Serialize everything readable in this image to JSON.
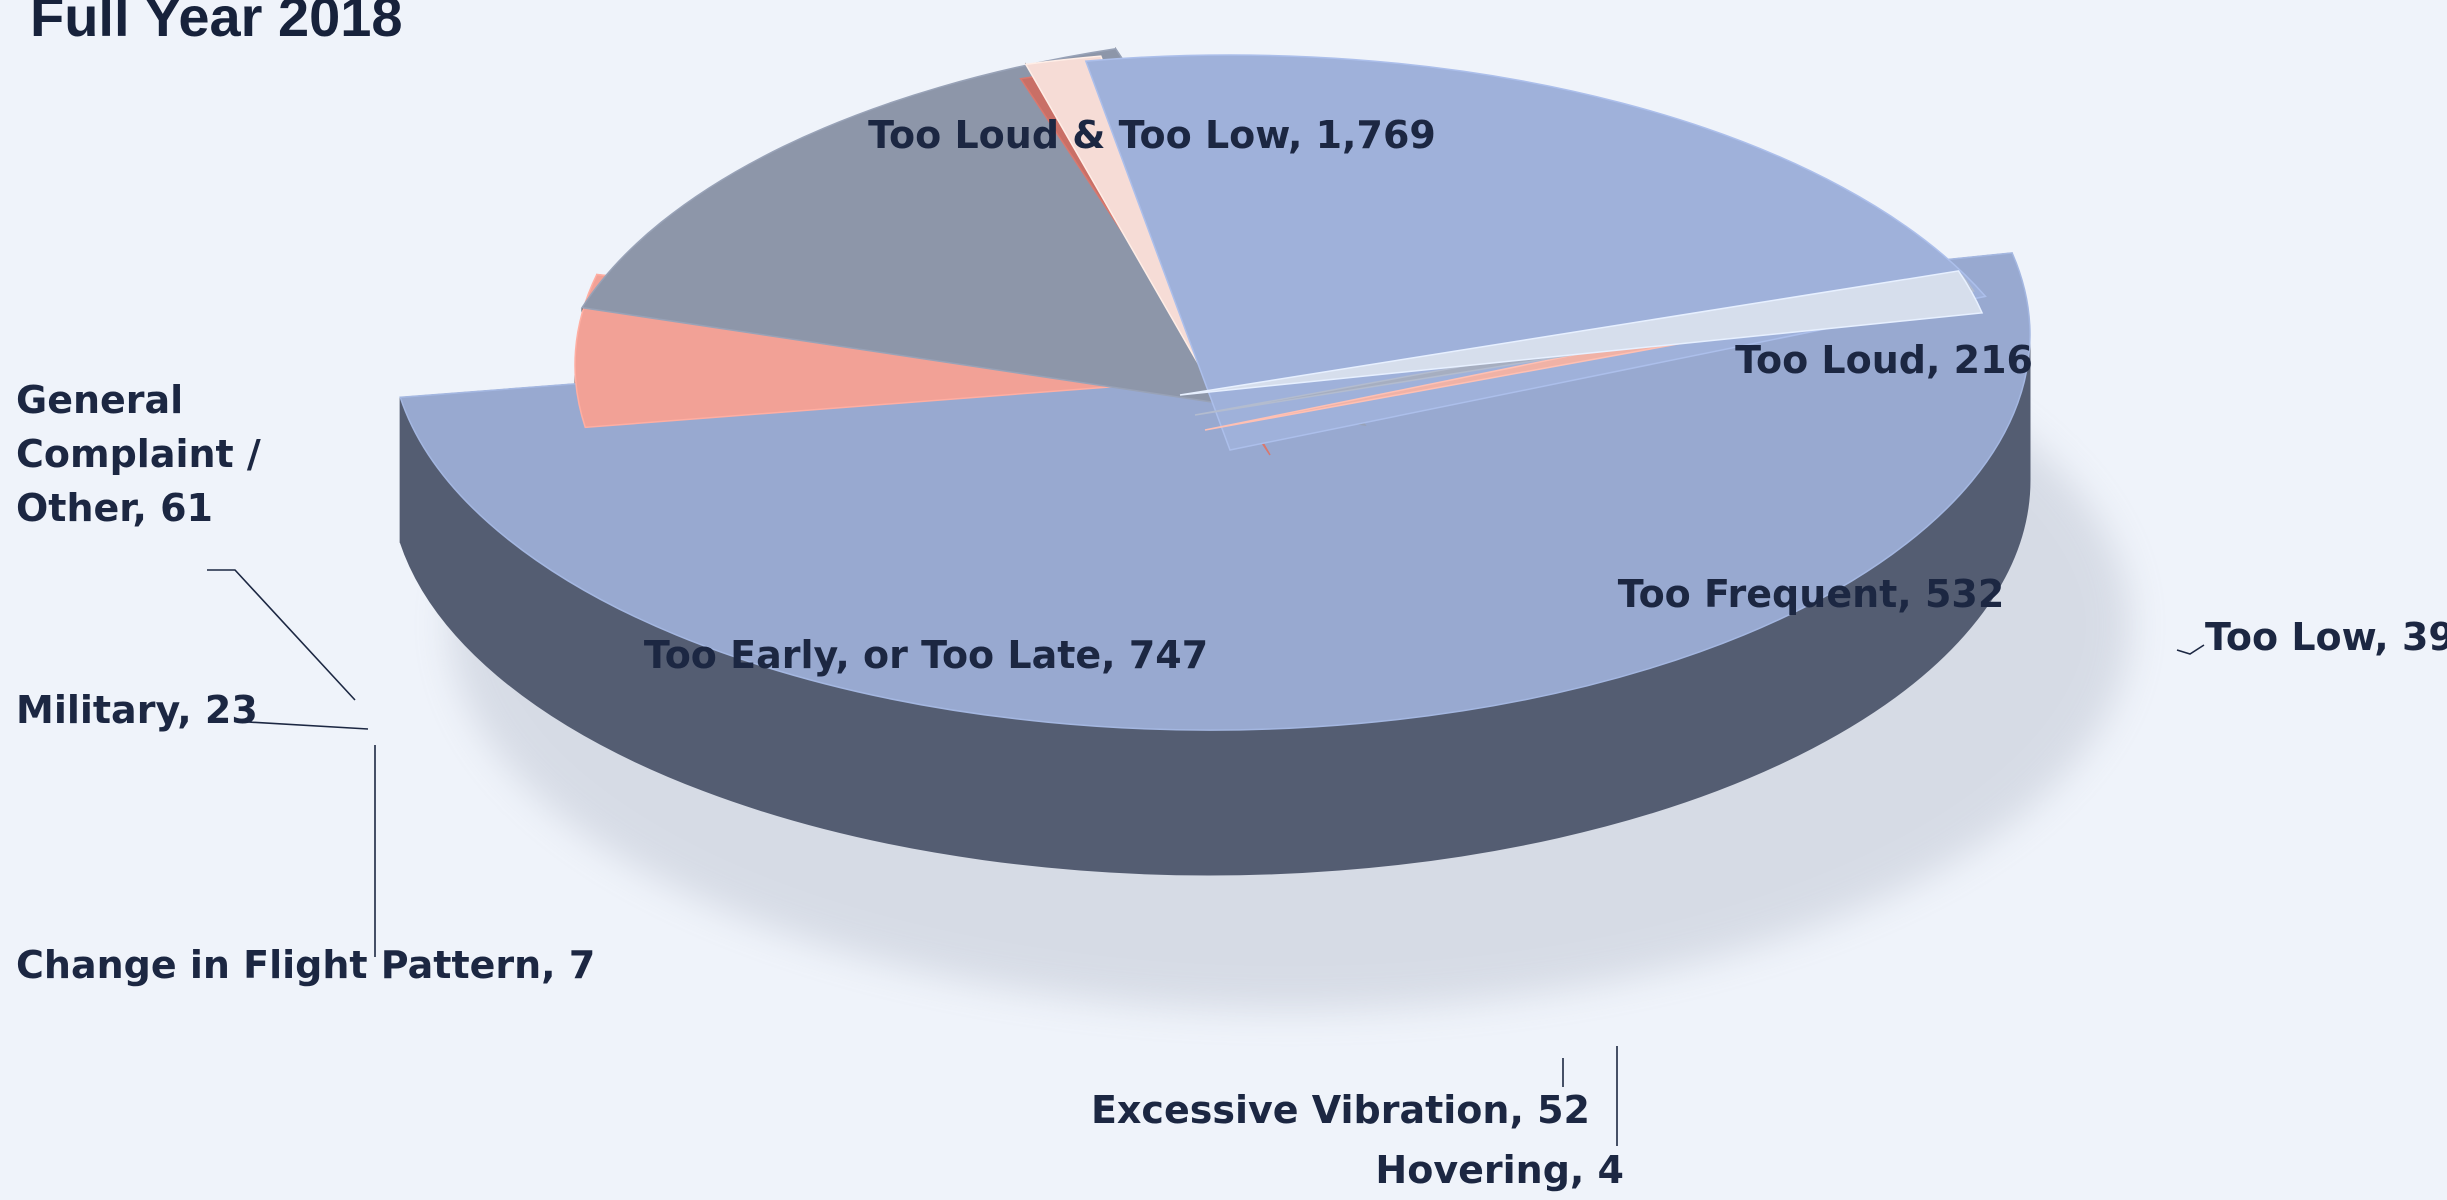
{
  "chart_data": {
    "type": "pie",
    "title": "Full Year 2018",
    "slices": [
      {
        "key": "loud_low",
        "label": "Too Loud & Too Low, 1,769",
        "category": "Too Loud & Too Low",
        "value": 1769,
        "color": "#98a9d0"
      },
      {
        "key": "loud",
        "label": "Too Loud, 216",
        "category": "Too Loud",
        "value": 216,
        "color": "#f2a196"
      },
      {
        "key": "low",
        "label": "Too Low, 39",
        "category": "Too Low",
        "value": 39,
        "color": "#f7f9fc"
      },
      {
        "key": "frequent",
        "label": "Too Frequent, 532",
        "category": "Too Frequent",
        "value": 532,
        "color": "#8d96a9"
      },
      {
        "key": "hovering",
        "label": "Hovering, 4",
        "category": "Hovering",
        "value": 4,
        "color": "#c96f66"
      },
      {
        "key": "vibration",
        "label": "Excessive Vibration, 52",
        "category": "Excessive Vibration",
        "value": 52,
        "color": "#f6dcd6"
      },
      {
        "key": "early",
        "label": "Too Early, or Too Late, 747",
        "category": "Too Early, or Too Late",
        "value": 747,
        "color": "#9fb1da"
      },
      {
        "key": "change",
        "label": "Change in Flight Pattern, 7",
        "category": "Change in Flight Pattern",
        "value": 7,
        "color": "#f0b2a6"
      },
      {
        "key": "military",
        "label": "Military, 23",
        "category": "Military",
        "value": 23,
        "color": "#a6aec0"
      },
      {
        "key": "general",
        "label": "General Complaint / Other, 61",
        "category": "General Complaint / Other",
        "value": 61,
        "color": "#d6deec"
      }
    ]
  }
}
